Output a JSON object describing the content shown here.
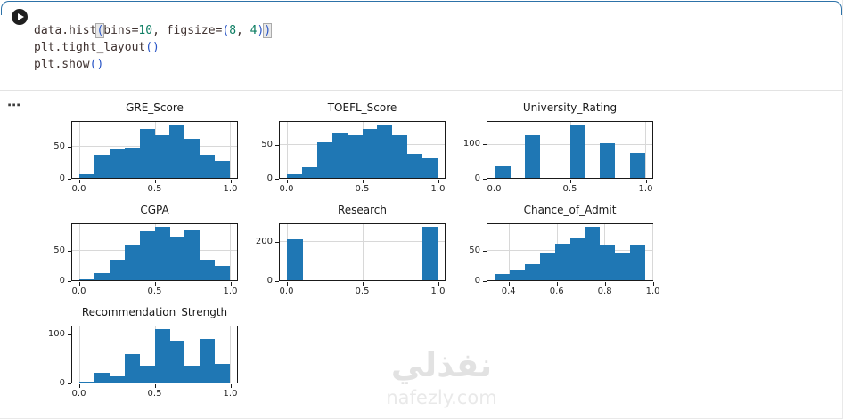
{
  "notebook": {
    "run_button_label": "run-cell",
    "code": {
      "lines": [
        [
          {
            "t": "data.hist",
            "c": "plain"
          },
          {
            "t": "(",
            "c": "bracket-hl"
          },
          {
            "t": "bins=",
            "c": "plain"
          },
          {
            "t": "10",
            "c": "number"
          },
          {
            "t": ", figsize=",
            "c": "plain"
          },
          {
            "t": "(",
            "c": "bracket"
          },
          {
            "t": "8",
            "c": "number"
          },
          {
            "t": ", ",
            "c": "plain"
          },
          {
            "t": "4",
            "c": "number"
          },
          {
            "t": ")",
            "c": "bracket"
          },
          {
            "t": ")",
            "c": "bracket-hl"
          }
        ],
        [
          {
            "t": "plt.tight_layout",
            "c": "plain"
          },
          {
            "t": "()",
            "c": "bracket"
          }
        ],
        [
          {
            "t": "plt.show",
            "c": "plain"
          },
          {
            "t": "()",
            "c": "bracket"
          }
        ]
      ]
    },
    "output_menu_glyph": "⋯"
  },
  "colors": {
    "bar": "#1f77b4",
    "grid": "#d8d8d8",
    "cell_outline_blue": "#2d72a8",
    "code_number": "#0c7d62",
    "code_bracket": "#2a56c6",
    "code_text": "#3f3230"
  },
  "watermark": {
    "arabic": "نفذلي",
    "latin": "nafezly.com"
  },
  "chart_data": [
    {
      "type": "bar",
      "subtype": "histogram",
      "title": "GRE_Score",
      "bin_start": 0.0,
      "bin_width": 0.1,
      "values": [
        5,
        37,
        45,
        48,
        78,
        68,
        85,
        62,
        37,
        27
      ],
      "xlim": [
        -0.05,
        1.05
      ],
      "ymax": 89.25,
      "yticks": [
        {
          "v": 0,
          "label": "0"
        },
        {
          "v": 50,
          "label": "50"
        }
      ],
      "xticks": [
        {
          "v": 0,
          "label": "0.0"
        },
        {
          "v": 0.5,
          "label": "0.5"
        },
        {
          "v": 1,
          "label": "1.0"
        }
      ],
      "grid": true
    },
    {
      "type": "bar",
      "subtype": "histogram",
      "title": "TOEFL_Score",
      "bin_start": 0.0,
      "bin_width": 0.1,
      "values": [
        5,
        17,
        55,
        68,
        65,
        75,
        82,
        65,
        37,
        30
      ],
      "xlim": [
        -0.05,
        1.05
      ],
      "ymax": 86.1,
      "yticks": [
        {
          "v": 0,
          "label": "0"
        },
        {
          "v": 50,
          "label": "50"
        }
      ],
      "xticks": [
        {
          "v": 0,
          "label": "0.0"
        },
        {
          "v": 0.5,
          "label": "0.5"
        },
        {
          "v": 1,
          "label": "1.0"
        }
      ],
      "grid": true
    },
    {
      "type": "bar",
      "subtype": "histogram",
      "title": "University_Rating",
      "bin_start": 0.0,
      "bin_width": 0.1,
      "values": [
        35,
        0,
        128,
        0,
        0,
        160,
        0,
        105,
        0,
        75
      ],
      "xlim": [
        -0.05,
        1.05
      ],
      "ymax": 168,
      "yticks": [
        {
          "v": 0,
          "label": "0"
        },
        {
          "v": 100,
          "label": "100"
        }
      ],
      "xticks": [
        {
          "v": 0,
          "label": "0.0"
        },
        {
          "v": 0.5,
          "label": "0.5"
        },
        {
          "v": 1,
          "label": "1.0"
        }
      ],
      "grid": true
    },
    {
      "type": "bar",
      "subtype": "histogram",
      "title": "CGPA",
      "bin_start": 0.0,
      "bin_width": 0.1,
      "values": [
        2,
        12,
        35,
        62,
        85,
        92,
        75,
        87,
        35,
        25
      ],
      "xlim": [
        -0.05,
        1.05
      ],
      "ymax": 96.6,
      "yticks": [
        {
          "v": 0,
          "label": "0"
        },
        {
          "v": 50,
          "label": "50"
        }
      ],
      "xticks": [
        {
          "v": 0,
          "label": "0.0"
        },
        {
          "v": 0.5,
          "label": "0.5"
        },
        {
          "v": 1,
          "label": "1.0"
        }
      ],
      "grid": true
    },
    {
      "type": "bar",
      "subtype": "histogram",
      "title": "Research",
      "bin_start": 0.0,
      "bin_width": 0.1,
      "values": [
        215,
        0,
        0,
        0,
        0,
        0,
        0,
        0,
        0,
        280
      ],
      "xlim": [
        -0.05,
        1.05
      ],
      "ymax": 294,
      "yticks": [
        {
          "v": 0,
          "label": "0"
        },
        {
          "v": 200,
          "label": "200"
        }
      ],
      "xticks": [
        {
          "v": 0,
          "label": "0.0"
        },
        {
          "v": 0.5,
          "label": "0.5"
        },
        {
          "v": 1,
          "label": "1.0"
        }
      ],
      "grid": true
    },
    {
      "type": "bar",
      "subtype": "histogram",
      "title": "Chance_of_Admit",
      "bin_start": 0.34,
      "bin_width": 0.063,
      "values": [
        10,
        17,
        27,
        46,
        62,
        72,
        90,
        60,
        47,
        60
      ],
      "xlim": [
        0.3085,
        1.0015
      ],
      "ymax": 94.5,
      "yticks": [
        {
          "v": 0,
          "label": "0"
        },
        {
          "v": 50,
          "label": "50"
        }
      ],
      "xticks": [
        {
          "v": 0.4,
          "label": "0.4"
        },
        {
          "v": 0.6,
          "label": "0.6"
        },
        {
          "v": 0.8,
          "label": "0.8"
        },
        {
          "v": 1.0,
          "label": "1.0"
        }
      ],
      "grid": true
    },
    {
      "type": "bar",
      "subtype": "histogram",
      "title": "Recommendation_Strength",
      "bin_start": 0.0,
      "bin_width": 0.1,
      "values": [
        2,
        20,
        13,
        60,
        35,
        112,
        88,
        35,
        92,
        40
      ],
      "xlim": [
        -0.05,
        1.05
      ],
      "ymax": 117.6,
      "yticks": [
        {
          "v": 0,
          "label": "0"
        },
        {
          "v": 100,
          "label": "100"
        }
      ],
      "xticks": [
        {
          "v": 0,
          "label": "0.0"
        },
        {
          "v": 0.5,
          "label": "0.5"
        },
        {
          "v": 1,
          "label": "1.0"
        }
      ],
      "grid": true
    }
  ]
}
